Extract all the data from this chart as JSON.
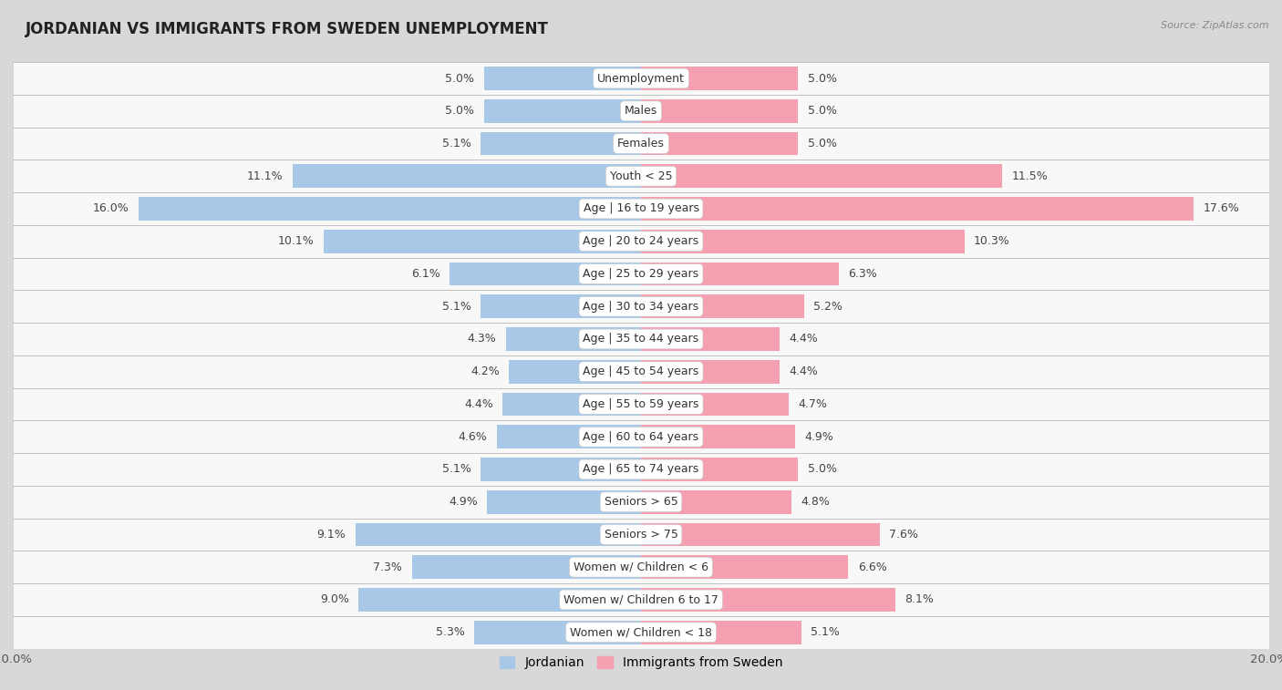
{
  "title": "JORDANIAN VS IMMIGRANTS FROM SWEDEN UNEMPLOYMENT",
  "source": "Source: ZipAtlas.com",
  "categories": [
    "Unemployment",
    "Males",
    "Females",
    "Youth < 25",
    "Age | 16 to 19 years",
    "Age | 20 to 24 years",
    "Age | 25 to 29 years",
    "Age | 30 to 34 years",
    "Age | 35 to 44 years",
    "Age | 45 to 54 years",
    "Age | 55 to 59 years",
    "Age | 60 to 64 years",
    "Age | 65 to 74 years",
    "Seniors > 65",
    "Seniors > 75",
    "Women w/ Children < 6",
    "Women w/ Children 6 to 17",
    "Women w/ Children < 18"
  ],
  "jordanian": [
    5.0,
    5.0,
    5.1,
    11.1,
    16.0,
    10.1,
    6.1,
    5.1,
    4.3,
    4.2,
    4.4,
    4.6,
    5.1,
    4.9,
    9.1,
    7.3,
    9.0,
    5.3
  ],
  "immigrants": [
    5.0,
    5.0,
    5.0,
    11.5,
    17.6,
    10.3,
    6.3,
    5.2,
    4.4,
    4.4,
    4.7,
    4.9,
    5.0,
    4.8,
    7.6,
    6.6,
    8.1,
    5.1
  ],
  "jordanian_color": "#a8c8e8",
  "immigrants_color": "#f4a0b0",
  "row_bg_light": "#f5f5f5",
  "row_bg_dark": "#e8e8e8",
  "outer_bg": "#d8d8d8",
  "xlim": 20.0,
  "bar_height": 0.72,
  "label_fontsize": 9.0,
  "title_fontsize": 12,
  "legend_jordanian": "Jordanian",
  "legend_immigrants": "Immigrants from Sweden"
}
